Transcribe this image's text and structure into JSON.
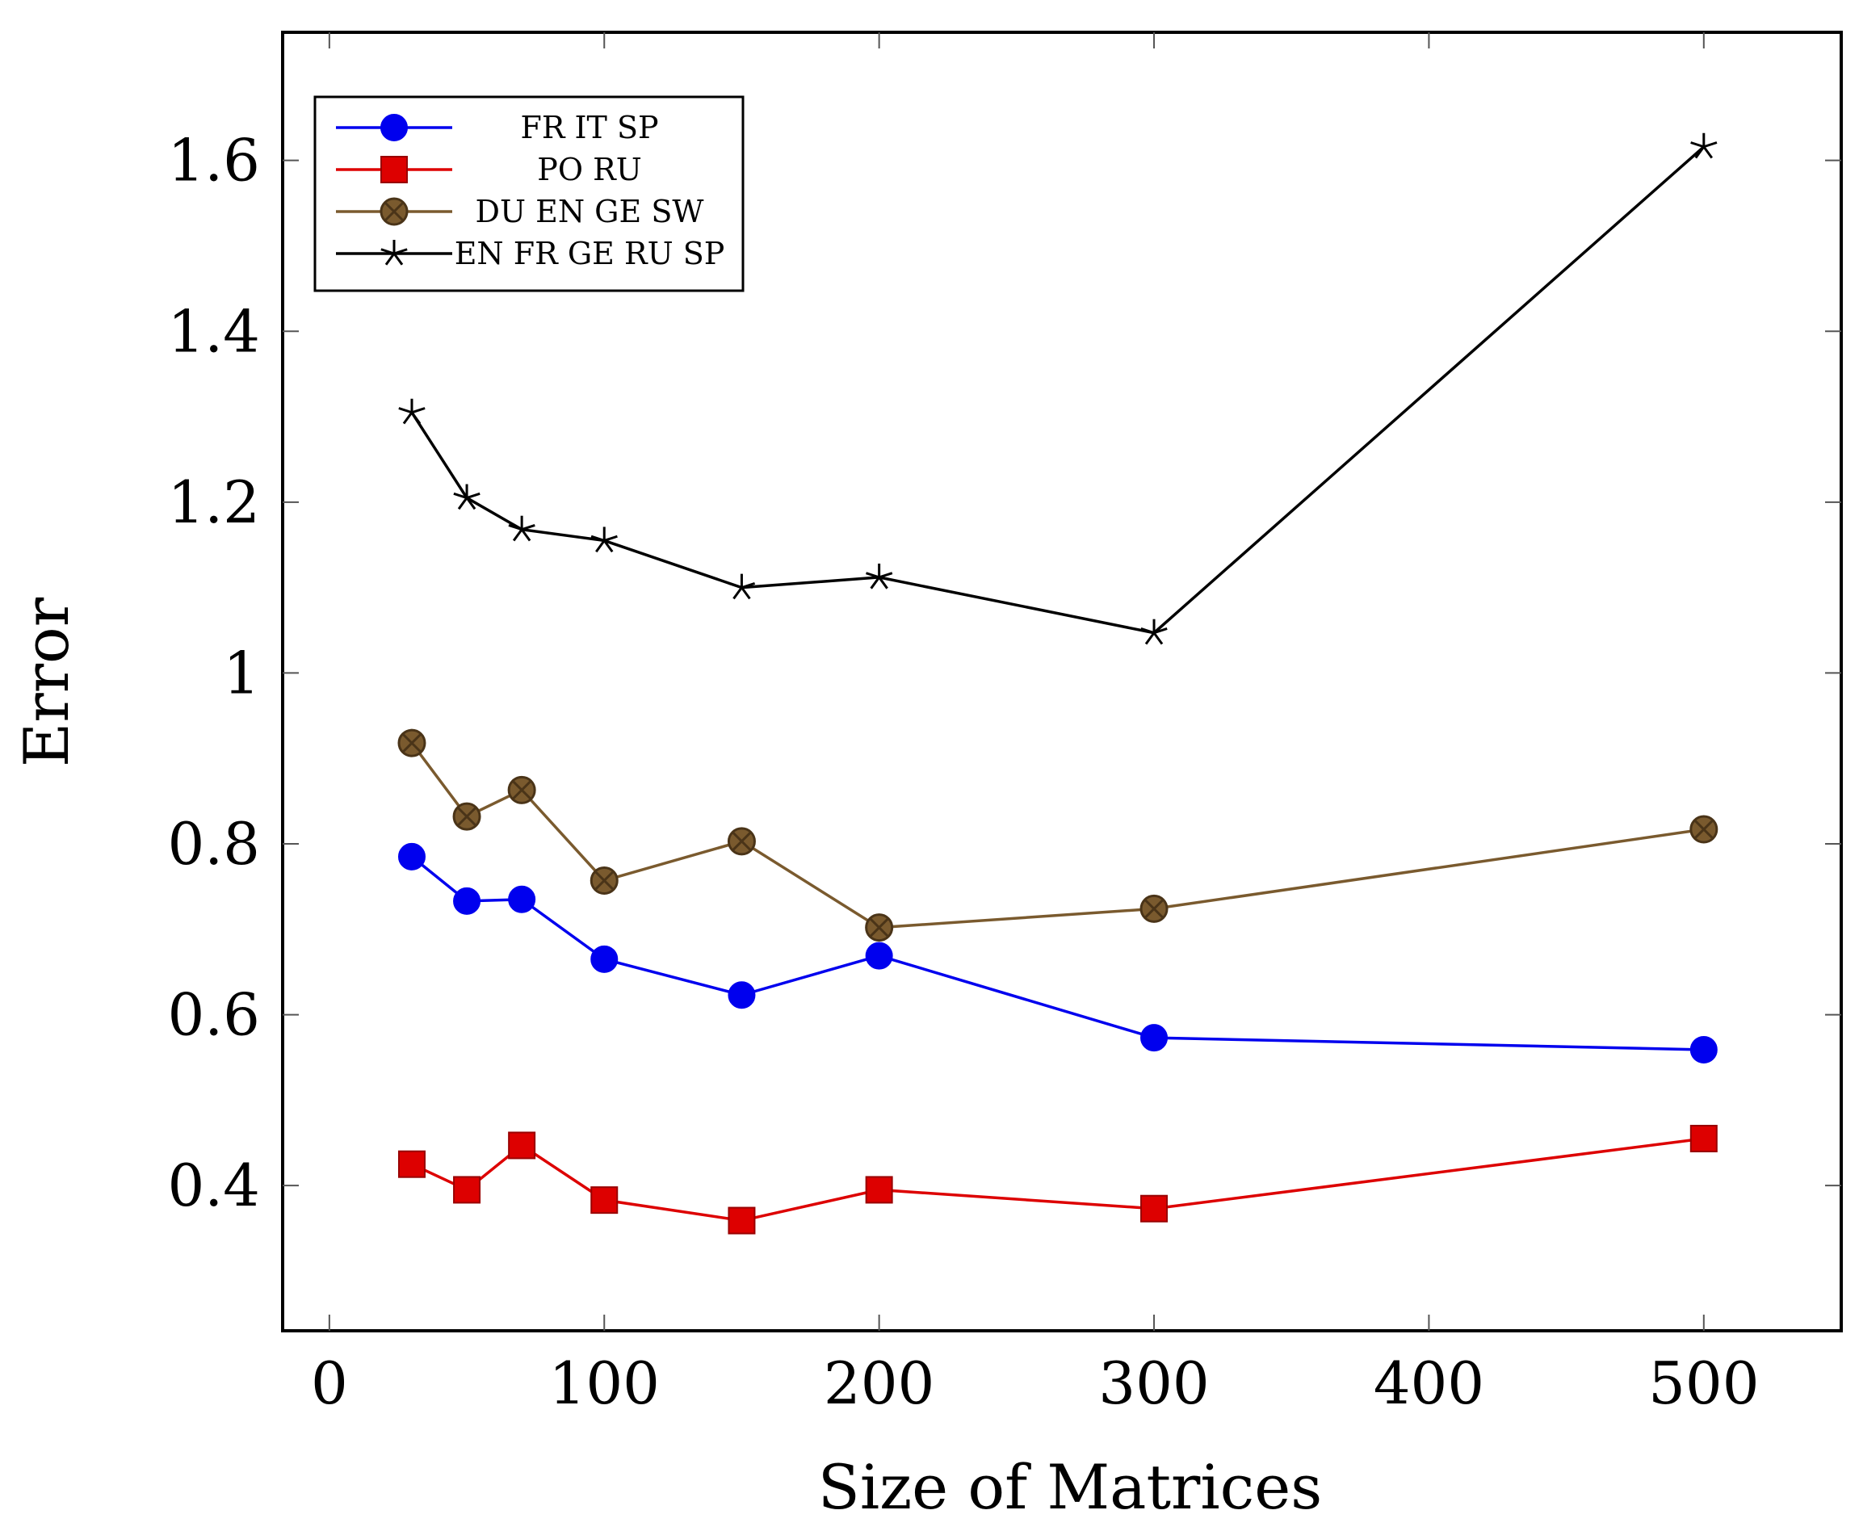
{
  "chart_data": {
    "type": "line",
    "title": "",
    "xlabel": "Size of Matrices",
    "ylabel": "Error",
    "xlim": [
      -17,
      550
    ],
    "ylim": [
      0.23,
      1.75
    ],
    "x_ticks": [
      0,
      100,
      200,
      300,
      400,
      500
    ],
    "x_tick_labels": [
      "0",
      "100",
      "200",
      "300",
      "400",
      "500"
    ],
    "y_ticks": [
      0.4,
      0.6,
      0.8,
      1.0,
      1.2,
      1.4,
      1.6
    ],
    "y_tick_labels": [
      "0.4",
      "0.6",
      "0.8",
      "1",
      "1.2",
      "1.4",
      "1.6"
    ],
    "grid": false,
    "legend_position": "top-left",
    "x": [
      30,
      50,
      70,
      100,
      150,
      200,
      300,
      500
    ],
    "series": [
      {
        "name": "FR IT SP",
        "color": "#0000ee",
        "marker": "circle",
        "values": [
          0.785,
          0.733,
          0.735,
          0.665,
          0.623,
          0.669,
          0.573,
          0.559
        ]
      },
      {
        "name": "PO RU",
        "color": "#dd0000",
        "marker": "square",
        "values": [
          0.425,
          0.395,
          0.447,
          0.383,
          0.359,
          0.395,
          0.373,
          0.455
        ]
      },
      {
        "name": "DU EN GE SW",
        "color": "#7a5a2e",
        "marker": "otimes",
        "values": [
          0.918,
          0.832,
          0.863,
          0.757,
          0.803,
          0.702,
          0.724,
          0.817
        ]
      },
      {
        "name": "EN FR GE RU SP",
        "color": "#000000",
        "marker": "star",
        "values": [
          1.305,
          1.205,
          1.168,
          1.155,
          1.1,
          1.112,
          1.047,
          1.616
        ]
      }
    ]
  }
}
